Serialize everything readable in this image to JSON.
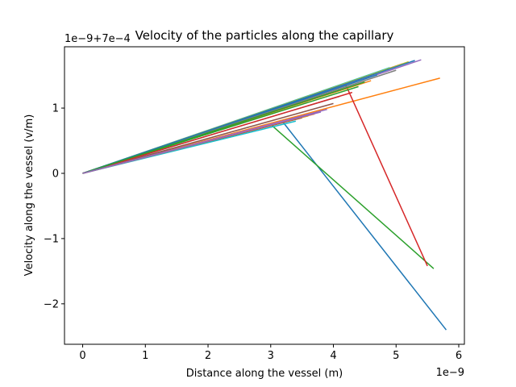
{
  "chart_data": {
    "type": "line",
    "title": "Velocity of the particles along the capillary",
    "xlabel": "Distance along the vessel (m)",
    "ylabel": "Velocity along the vessel (v/m)",
    "x_offset_text": "1e−9",
    "y_offset_text": "1e−9+7e−4",
    "x_units_scale": 1e-09,
    "y_units_note": "values are relative to 7e-4 and scaled by 1e-9",
    "xlim": [
      -0.29,
      6.09
    ],
    "ylim": [
      -2.62,
      1.94
    ],
    "x_ticks": [
      0,
      1,
      2,
      3,
      4,
      5,
      6
    ],
    "x_tick_labels": [
      "0",
      "1",
      "2",
      "3",
      "4",
      "5",
      "6"
    ],
    "y_ticks": [
      -2,
      -1,
      0,
      1
    ],
    "y_tick_labels": [
      "−2",
      "−1",
      "0",
      "1"
    ],
    "grid": false,
    "series": [
      {
        "color": "#1f77b4",
        "x": [
          0,
          3.2,
          5.8
        ],
        "y": [
          0,
          0.78,
          -2.4
        ]
      },
      {
        "color": "#ff7f0e",
        "x": [
          0,
          5.7
        ],
        "y": [
          0,
          1.46
        ]
      },
      {
        "color": "#2ca02c",
        "x": [
          0,
          3.0,
          5.6
        ],
        "y": [
          0,
          0.75,
          -1.46
        ]
      },
      {
        "color": "#d62728",
        "x": [
          0,
          4.2,
          5.5
        ],
        "y": [
          0,
          1.35,
          -1.42
        ]
      },
      {
        "color": "#9467bd",
        "x": [
          0,
          5.4
        ],
        "y": [
          0,
          1.74
        ]
      },
      {
        "color": "#8c564b",
        "x": [
          0,
          4.0
        ],
        "y": [
          0,
          1.07
        ]
      },
      {
        "color": "#e377c2",
        "x": [
          0,
          5.1
        ],
        "y": [
          0,
          1.68
        ]
      },
      {
        "color": "#7f7f7f",
        "x": [
          0,
          4.1
        ],
        "y": [
          0,
          1.18
        ]
      },
      {
        "color": "#bcbd22",
        "x": [
          0,
          3.6
        ],
        "y": [
          0,
          0.88
        ]
      },
      {
        "color": "#17becf",
        "x": [
          0,
          4.9
        ],
        "y": [
          0,
          1.62
        ]
      },
      {
        "color": "#1f77b4",
        "x": [
          0,
          4.7
        ],
        "y": [
          0,
          1.51
        ]
      },
      {
        "color": "#ff7f0e",
        "x": [
          0,
          4.6
        ],
        "y": [
          0,
          1.42
        ]
      },
      {
        "color": "#2ca02c",
        "x": [
          0,
          4.4
        ],
        "y": [
          0,
          1.33
        ]
      },
      {
        "color": "#d62728",
        "x": [
          0,
          4.3
        ],
        "y": [
          0,
          1.24
        ]
      },
      {
        "color": "#9467bd",
        "x": [
          0,
          3.9
        ],
        "y": [
          0,
          0.98
        ]
      },
      {
        "color": "#8c564b",
        "x": [
          0,
          3.5
        ],
        "y": [
          0,
          0.85
        ]
      },
      {
        "color": "#e377c2",
        "x": [
          0,
          3.3
        ],
        "y": [
          0,
          0.82
        ]
      },
      {
        "color": "#7f7f7f",
        "x": [
          0,
          5.0
        ],
        "y": [
          0,
          1.58
        ]
      },
      {
        "color": "#bcbd22",
        "x": [
          0,
          5.2
        ],
        "y": [
          0,
          1.71
        ]
      },
      {
        "color": "#17becf",
        "x": [
          0,
          3.4
        ],
        "y": [
          0,
          0.8
        ]
      },
      {
        "color": "#1f77b4",
        "x": [
          0,
          5.3
        ],
        "y": [
          0,
          1.73
        ]
      },
      {
        "color": "#ff7f0e",
        "x": [
          0,
          3.7
        ],
        "y": [
          0,
          0.91
        ]
      },
      {
        "color": "#2ca02c",
        "x": [
          0,
          4.5
        ],
        "y": [
          0,
          1.4
        ]
      },
      {
        "color": "#9467bd",
        "x": [
          0,
          3.8
        ],
        "y": [
          0,
          0.94
        ]
      }
    ]
  }
}
